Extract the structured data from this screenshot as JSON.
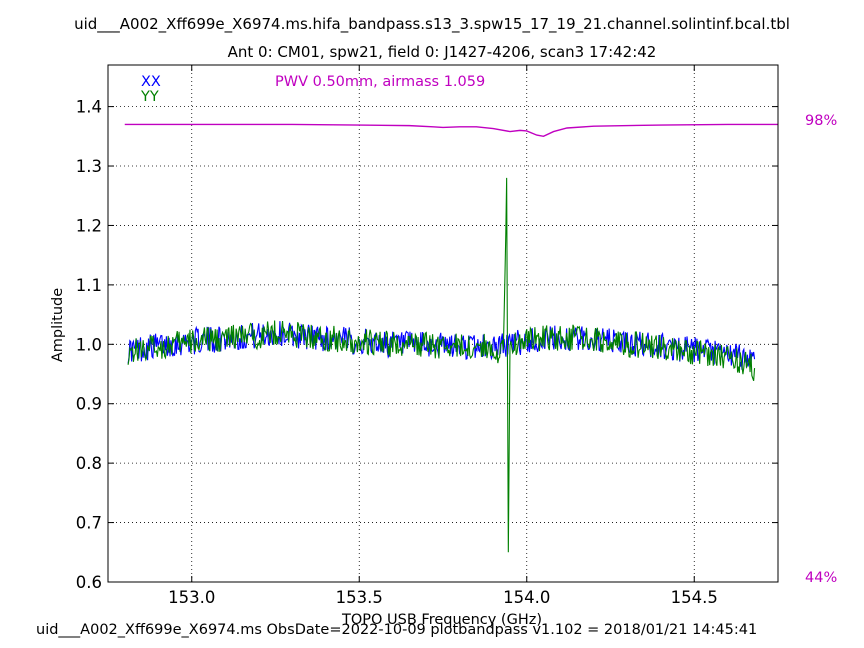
{
  "chart_data": {
    "type": "line",
    "title": "uid___A002_Xff699e_X6974.ms.hifa_bandpass.s13_3.spw15_17_19_21.channel.solintinf.bcal.tbl",
    "subtitle": "Ant 0: CM01,  spw21,  field 0: J1427-4206,  scan3  17:42:42",
    "xlabel": "TOPO USB Frequency (GHz)",
    "ylabel": "Amplitude",
    "xlim": [
      152.75,
      154.75
    ],
    "ylim": [
      0.6,
      1.47
    ],
    "xticks": [
      153.0,
      153.5,
      154.0,
      154.5
    ],
    "xtick_labels": [
      "153.0",
      "153.5",
      "154.0",
      "154.5"
    ],
    "yticks": [
      0.6,
      0.7,
      0.8,
      0.9,
      1.0,
      1.1,
      1.2,
      1.3,
      1.4
    ],
    "ytick_labels": [
      "0.6",
      "0.7",
      "0.8",
      "0.9",
      "1.0",
      "1.1",
      "1.2",
      "1.3",
      "1.4"
    ],
    "grid": true,
    "legend_position": "top-left",
    "annotation": "PWV 0.50mm, airmass 1.059",
    "annotation_color": "#c000c0",
    "atm_axis": {
      "top_label": "98%",
      "bottom_label": "44%",
      "color": "#c000c0"
    },
    "series": [
      {
        "name": "XX",
        "color": "#0000ff",
        "x": [
          152.81,
          152.9,
          153.0,
          153.1,
          153.2,
          153.25,
          153.3,
          153.4,
          153.5,
          153.6,
          153.7,
          153.8,
          153.9,
          154.0,
          154.1,
          154.2,
          154.3,
          154.4,
          154.5,
          154.6,
          154.68
        ],
        "y": [
          0.99,
          0.998,
          1.005,
          1.01,
          1.015,
          1.018,
          1.016,
          1.01,
          1.005,
          1.0,
          0.998,
          0.997,
          0.996,
          1.005,
          1.01,
          1.008,
          1.002,
          0.997,
          0.99,
          0.982,
          0.975
        ]
      },
      {
        "name": "YY",
        "color": "#008000",
        "x": [
          152.81,
          152.9,
          153.0,
          153.1,
          153.2,
          153.25,
          153.3,
          153.4,
          153.5,
          153.6,
          153.7,
          153.8,
          153.9,
          153.93,
          153.94,
          153.945,
          153.95,
          154.0,
          154.1,
          154.2,
          154.3,
          154.4,
          154.5,
          154.6,
          154.68
        ],
        "y": [
          0.988,
          0.996,
          1.004,
          1.01,
          1.015,
          1.02,
          1.017,
          1.01,
          1.004,
          0.999,
          0.998,
          0.996,
          0.995,
          0.985,
          1.28,
          0.65,
          1.0,
          1.008,
          1.012,
          1.008,
          1.001,
          0.995,
          0.988,
          0.98,
          0.96
        ]
      }
    ],
    "atmosphere_curve": {
      "color": "#c000c0",
      "x": [
        152.8,
        153.0,
        153.3,
        153.5,
        153.65,
        153.72,
        153.75,
        153.8,
        153.85,
        153.9,
        153.95,
        153.98,
        154.0,
        154.03,
        154.05,
        154.08,
        154.12,
        154.2,
        154.4,
        154.6,
        154.75
      ],
      "y": [
        1.37,
        1.37,
        1.37,
        1.369,
        1.368,
        1.366,
        1.365,
        1.366,
        1.366,
        1.363,
        1.358,
        1.36,
        1.359,
        1.352,
        1.35,
        1.358,
        1.364,
        1.367,
        1.369,
        1.37,
        1.37
      ]
    }
  },
  "footer": "uid___A002_Xff699e_X6974.ms  ObsDate=2022-10-09   plotbandpass v1.102 = 2018/01/21 14:45:41"
}
